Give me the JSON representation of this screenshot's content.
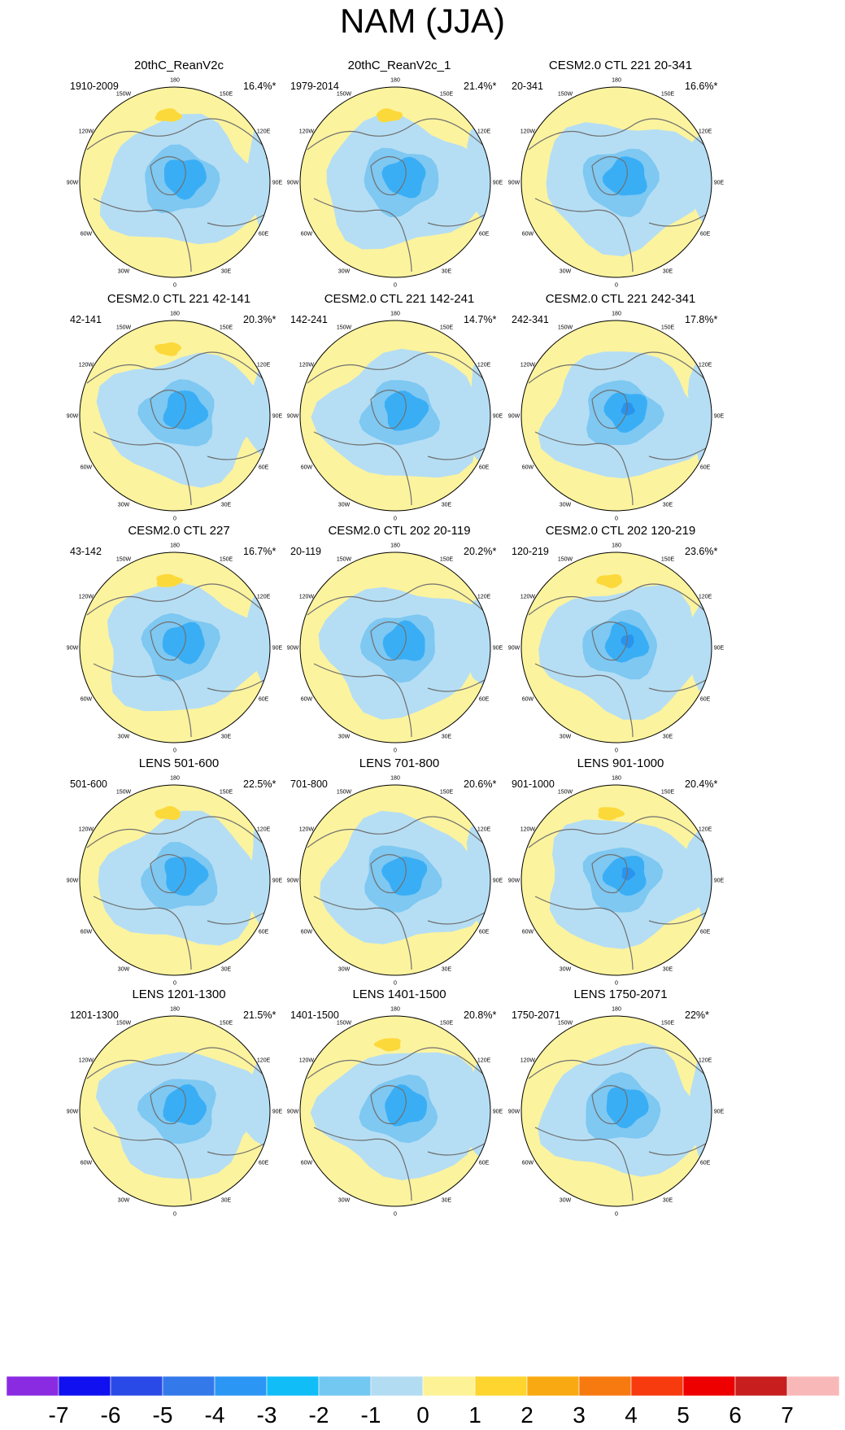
{
  "title": "NAM (JJA)",
  "colors": {
    "ocean_positive": "#fcf39e",
    "neg1": "#b5def4",
    "neg2": "#7ec8f2",
    "neg3": "#3aaef5",
    "neg4": "#2a93ee",
    "pos1": "#fcd93a",
    "coast": "#707070"
  },
  "chart_data": {
    "type": "heatmap",
    "projection": "north-polar-stereographic",
    "layout": "5 rows x 3 columns",
    "lon_labels": [
      "180",
      "150E",
      "120E",
      "90E",
      "60E",
      "30E",
      "0",
      "30W",
      "60W",
      "90W",
      "120W",
      "150W"
    ],
    "panels": [
      {
        "title": "20thC_ReanV2c",
        "range": "1910-2009",
        "variance": "16.4%*",
        "min_contour": -3,
        "max_contour": 1
      },
      {
        "title": "20thC_ReanV2c_1",
        "range": "1979-2014",
        "variance": "21.4%*",
        "min_contour": -3,
        "max_contour": 1
      },
      {
        "title": "CESM2.0 CTL 221 20-341",
        "range": "20-341",
        "variance": "16.6%*",
        "min_contour": -3,
        "max_contour": 0
      },
      {
        "title": "CESM2.0 CTL 221 42-141",
        "range": "42-141",
        "variance": "20.3%*",
        "min_contour": -3,
        "max_contour": 1
      },
      {
        "title": "CESM2.0 CTL 221 142-241",
        "range": "142-241",
        "variance": "14.7%*",
        "min_contour": -3,
        "max_contour": 0
      },
      {
        "title": "CESM2.0 CTL 221 242-341",
        "range": "242-341",
        "variance": "17.8%*",
        "min_contour": -4,
        "max_contour": 0
      },
      {
        "title": "CESM2.0 CTL 227",
        "range": "43-142",
        "variance": "16.7%*",
        "min_contour": -3,
        "max_contour": 1
      },
      {
        "title": "CESM2.0 CTL 202 20-119",
        "range": "20-119",
        "variance": "20.2%*",
        "min_contour": -3,
        "max_contour": 0
      },
      {
        "title": "CESM2.0 CTL 202 120-219",
        "range": "120-219",
        "variance": "23.6%*",
        "min_contour": -4,
        "max_contour": 1
      },
      {
        "title": "LENS 501-600",
        "range": "501-600",
        "variance": "22.5%*",
        "min_contour": -3,
        "max_contour": 1
      },
      {
        "title": "LENS 701-800",
        "range": "701-800",
        "variance": "20.6%*",
        "min_contour": -3,
        "max_contour": 0
      },
      {
        "title": "LENS 901-1000",
        "range": "901-1000",
        "variance": "20.4%*",
        "min_contour": -4,
        "max_contour": 1
      },
      {
        "title": "LENS 1201-1300",
        "range": "1201-1300",
        "variance": "21.5%*",
        "min_contour": -3,
        "max_contour": 0
      },
      {
        "title": "LENS 1401-1500",
        "range": "1401-1500",
        "variance": "20.8%*",
        "min_contour": -3,
        "max_contour": 1
      },
      {
        "title": "LENS 1750-2071",
        "range": "1750-2071",
        "variance": "22%*",
        "min_contour": -3,
        "max_contour": 0
      }
    ],
    "colorbar": {
      "tick_labels": [
        "-7",
        "-6",
        "-5",
        "-4",
        "-3",
        "-2",
        "-1",
        "0",
        "1",
        "2",
        "3",
        "4",
        "5",
        "6",
        "7"
      ],
      "colors": [
        "#8a2be2",
        "#1010f0",
        "#2a4ae8",
        "#3479ea",
        "#2c96f5",
        "#10bdf7",
        "#73c8f2",
        "#b2dcf2",
        "#fdf396",
        "#fdd52e",
        "#f9aa12",
        "#f77a11",
        "#f83a0f",
        "#ee0000",
        "#c81e1e",
        "#f9b8b8"
      ]
    }
  }
}
